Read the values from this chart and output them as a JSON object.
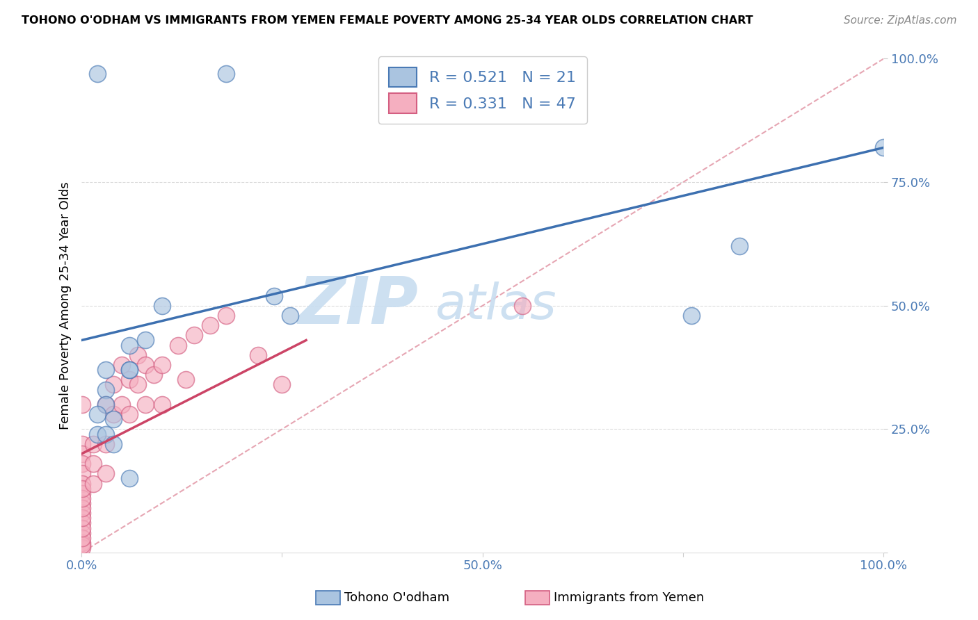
{
  "title": "TOHONO O'ODHAM VS IMMIGRANTS FROM YEMEN FEMALE POVERTY AMONG 25-34 YEAR OLDS CORRELATION CHART",
  "source": "Source: ZipAtlas.com",
  "ylabel": "Female Poverty Among 25-34 Year Olds",
  "xlim": [
    0,
    1.0
  ],
  "ylim": [
    0,
    1.0
  ],
  "xtick_vals": [
    0.0,
    0.25,
    0.5,
    0.75,
    1.0
  ],
  "ytick_vals": [
    0.0,
    0.25,
    0.5,
    0.75,
    1.0
  ],
  "xticklabels": [
    "0.0%",
    "",
    "50.0%",
    "",
    "100.0%"
  ],
  "yticklabels": [
    "",
    "25.0%",
    "50.0%",
    "75.0%",
    "100.0%"
  ],
  "blue_R": 0.521,
  "blue_N": 21,
  "pink_R": 0.331,
  "pink_N": 47,
  "blue_color": "#aac4e0",
  "pink_color": "#f5afc0",
  "blue_edge_color": "#4a7ab5",
  "pink_edge_color": "#d45f82",
  "blue_line_color": "#3d70b0",
  "pink_line_color": "#cc4466",
  "diag_line_color": "#e090a0",
  "grid_color": "#cccccc",
  "legend_label_blue": "Tohono O'odham",
  "legend_label_pink": "Immigrants from Yemen",
  "tick_color": "#4a7ab5",
  "watermark_color": "#c8ddf0",
  "blue_scatter_x": [
    0.02,
    0.18,
    0.06,
    0.06,
    0.03,
    0.03,
    0.03,
    0.02,
    0.02,
    0.03,
    0.04,
    0.04,
    0.06,
    0.08,
    0.1,
    0.24,
    0.26,
    0.06,
    0.76,
    0.82,
    1.0
  ],
  "blue_scatter_y": [
    0.97,
    0.97,
    0.37,
    0.42,
    0.37,
    0.33,
    0.3,
    0.28,
    0.24,
    0.24,
    0.22,
    0.27,
    0.37,
    0.43,
    0.5,
    0.52,
    0.48,
    0.15,
    0.48,
    0.62,
    0.82
  ],
  "pink_scatter_x": [
    0.001,
    0.001,
    0.001,
    0.001,
    0.001,
    0.001,
    0.001,
    0.001,
    0.001,
    0.001,
    0.001,
    0.001,
    0.001,
    0.001,
    0.001,
    0.001,
    0.001,
    0.001,
    0.001,
    0.001,
    0.015,
    0.015,
    0.015,
    0.03,
    0.03,
    0.03,
    0.04,
    0.04,
    0.05,
    0.05,
    0.06,
    0.06,
    0.07,
    0.07,
    0.08,
    0.08,
    0.09,
    0.1,
    0.1,
    0.12,
    0.13,
    0.14,
    0.16,
    0.18,
    0.22,
    0.25,
    0.55
  ],
  "pink_scatter_y": [
    0.3,
    0.22,
    0.2,
    0.18,
    0.16,
    0.14,
    0.12,
    0.1,
    0.08,
    0.06,
    0.04,
    0.02,
    0.01,
    0.015,
    0.03,
    0.05,
    0.07,
    0.09,
    0.11,
    0.13,
    0.22,
    0.18,
    0.14,
    0.3,
    0.22,
    0.16,
    0.34,
    0.28,
    0.38,
    0.3,
    0.35,
    0.28,
    0.4,
    0.34,
    0.38,
    0.3,
    0.36,
    0.38,
    0.3,
    0.42,
    0.35,
    0.44,
    0.46,
    0.48,
    0.4,
    0.34,
    0.5
  ],
  "blue_trend_x0": 0.0,
  "blue_trend_y0": 0.43,
  "blue_trend_x1": 1.0,
  "blue_trend_y1": 0.82,
  "pink_trend_x0": 0.0,
  "pink_trend_y0": 0.2,
  "pink_trend_x1": 0.28,
  "pink_trend_y1": 0.43,
  "fig_bg": "#ffffff",
  "plot_bg": "#ffffff"
}
